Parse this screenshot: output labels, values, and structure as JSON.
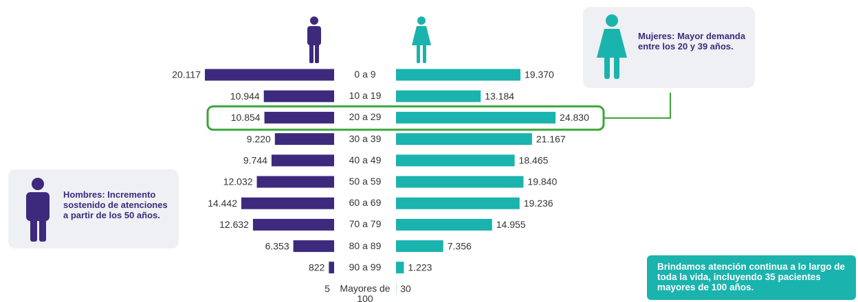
{
  "chart_data": {
    "type": "pyramid",
    "categories": [
      "0 a 9",
      "10 a 19",
      "20 a 29",
      "30 a 39",
      "40 a 49",
      "50 a 59",
      "60 a 69",
      "70 a 79",
      "80 a 89",
      "90 a 99",
      "Mayores de 100"
    ],
    "series": [
      {
        "color": "#3d2a7d",
        "values": [
          20117,
          10944,
          10854,
          9220,
          9744,
          12032,
          14442,
          12632,
          6353,
          822,
          5
        ],
        "value_labels": [
          "20.117",
          "10.944",
          "10.854",
          "9.220",
          "9.744",
          "12.032",
          "14.442",
          "12.632",
          "6.353",
          "822",
          "5"
        ]
      },
      {
        "color": "#1bb3ad",
        "values": [
          19370,
          13184,
          24830,
          21167,
          18465,
          19840,
          19236,
          14955,
          7356,
          1223,
          30
        ],
        "value_labels": [
          "19.370",
          "13.184",
          "24.830",
          "21.167",
          "18.465",
          "19.840",
          "19.236",
          "14.955",
          "7.356",
          "1.223",
          "30"
        ]
      }
    ],
    "annotations": [
      "Mujeres: Mayor demanda entre los 20 y 39 años.",
      "Hombres: Incremento sostenido de atenciones a partir de los 50 años.",
      "Brindamos atención continua a lo largo de toda la vida, incluyendo 35 pacientes mayores de 100 años."
    ]
  }
}
